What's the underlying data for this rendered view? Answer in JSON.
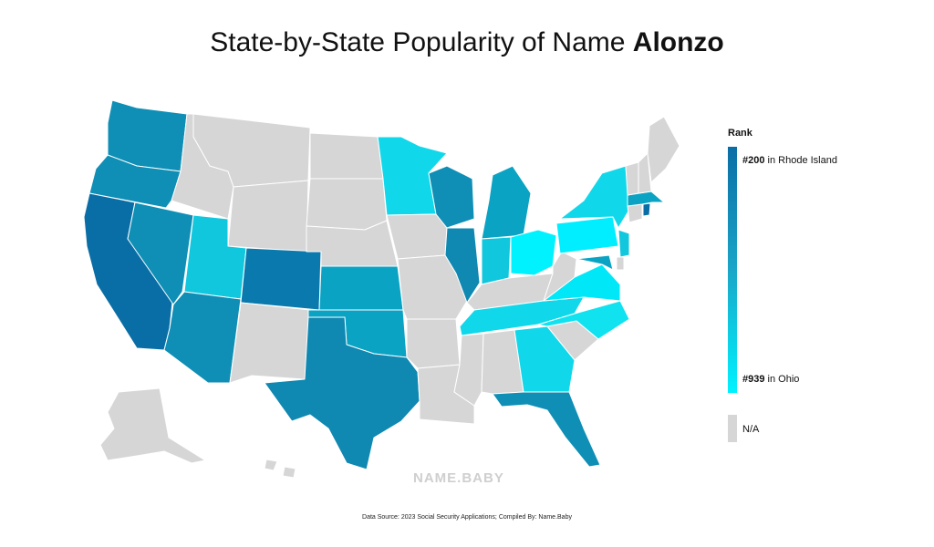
{
  "title": {
    "prefix": "State-by-State Popularity of Name ",
    "name": "Alonzo"
  },
  "legend": {
    "title": "Rank",
    "max_rank": "#200",
    "max_state": " in Rhode Island",
    "min_rank": "#939",
    "min_state": " in Ohio",
    "na_label": "N/A"
  },
  "watermark": "NAME.BABY",
  "source": "Data Source: 2023 Social Security Applications; Compiled By: Name.Baby",
  "colors": {
    "na": "#d6d6d6",
    "scale_high": "#0a6ea6",
    "scale_low": "#00f2ff"
  },
  "states": [
    {
      "name": "Washington",
      "rank": "ranked"
    },
    {
      "name": "Oregon",
      "rank": "ranked"
    },
    {
      "name": "California",
      "rank": "ranked"
    },
    {
      "name": "Nevada",
      "rank": "ranked"
    },
    {
      "name": "Idaho",
      "rank": "N/A"
    },
    {
      "name": "Montana",
      "rank": "N/A"
    },
    {
      "name": "Wyoming",
      "rank": "N/A"
    },
    {
      "name": "Utah",
      "rank": "ranked"
    },
    {
      "name": "Arizona",
      "rank": "ranked"
    },
    {
      "name": "Colorado",
      "rank": "ranked"
    },
    {
      "name": "New Mexico",
      "rank": "N/A"
    },
    {
      "name": "North Dakota",
      "rank": "N/A"
    },
    {
      "name": "South Dakota",
      "rank": "N/A"
    },
    {
      "name": "Nebraska",
      "rank": "N/A"
    },
    {
      "name": "Kansas",
      "rank": "ranked"
    },
    {
      "name": "Oklahoma",
      "rank": "ranked"
    },
    {
      "name": "Texas",
      "rank": "ranked"
    },
    {
      "name": "Minnesota",
      "rank": "ranked"
    },
    {
      "name": "Iowa",
      "rank": "N/A"
    },
    {
      "name": "Missouri",
      "rank": "N/A"
    },
    {
      "name": "Arkansas",
      "rank": "N/A"
    },
    {
      "name": "Louisiana",
      "rank": "N/A"
    },
    {
      "name": "Wisconsin",
      "rank": "ranked"
    },
    {
      "name": "Illinois",
      "rank": "ranked"
    },
    {
      "name": "Michigan",
      "rank": "ranked"
    },
    {
      "name": "Indiana",
      "rank": "ranked"
    },
    {
      "name": "Ohio",
      "rank": "#939"
    },
    {
      "name": "Kentucky",
      "rank": "N/A"
    },
    {
      "name": "Tennessee",
      "rank": "ranked"
    },
    {
      "name": "Mississippi",
      "rank": "N/A"
    },
    {
      "name": "Alabama",
      "rank": "N/A"
    },
    {
      "name": "Georgia",
      "rank": "ranked"
    },
    {
      "name": "Florida",
      "rank": "ranked"
    },
    {
      "name": "South Carolina",
      "rank": "N/A"
    },
    {
      "name": "North Carolina",
      "rank": "ranked"
    },
    {
      "name": "Virginia",
      "rank": "ranked"
    },
    {
      "name": "West Virginia",
      "rank": "N/A"
    },
    {
      "name": "Pennsylvania",
      "rank": "ranked"
    },
    {
      "name": "New York",
      "rank": "ranked"
    },
    {
      "name": "New Jersey",
      "rank": "ranked"
    },
    {
      "name": "Maryland",
      "rank": "ranked"
    },
    {
      "name": "Delaware",
      "rank": "N/A"
    },
    {
      "name": "Connecticut",
      "rank": "N/A"
    },
    {
      "name": "Rhode Island",
      "rank": "#200"
    },
    {
      "name": "Massachusetts",
      "rank": "ranked"
    },
    {
      "name": "Vermont",
      "rank": "N/A"
    },
    {
      "name": "New Hampshire",
      "rank": "N/A"
    },
    {
      "name": "Maine",
      "rank": "N/A"
    },
    {
      "name": "Alaska",
      "rank": "N/A"
    },
    {
      "name": "Hawaii",
      "rank": "N/A"
    }
  ]
}
